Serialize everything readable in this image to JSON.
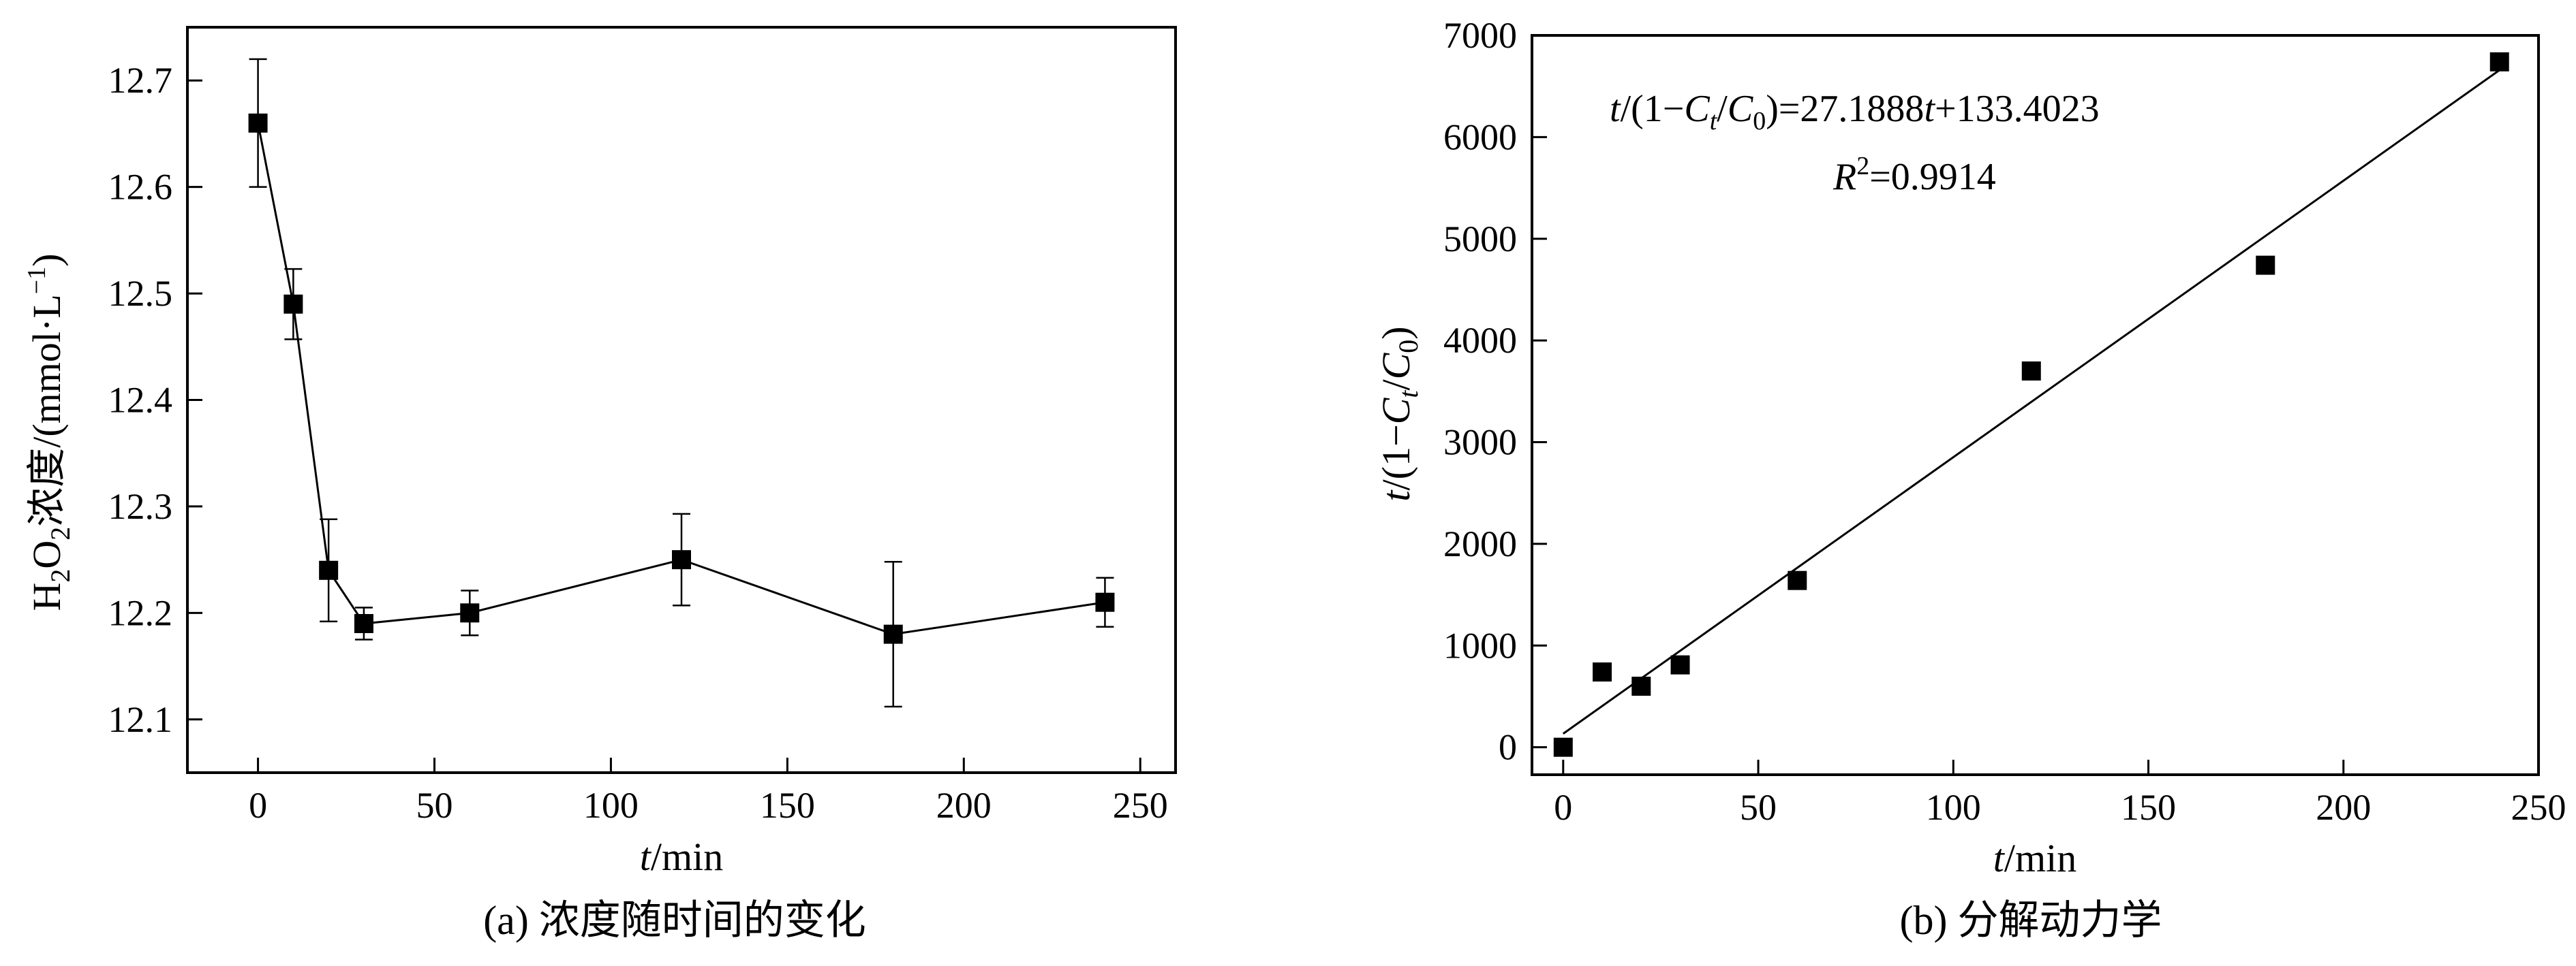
{
  "colors": {
    "ink": "#000000",
    "background": "#ffffff"
  },
  "chart_data": [
    {
      "type": "line",
      "caption": "(a) 浓度随时间的变化",
      "xlabel": {
        "var": "t",
        "unit": "/min"
      },
      "ylabel": {
        "species": "H",
        "sub1": "2",
        "mid": "O",
        "sub2": "2",
        "word": "浓度/(mmol·L",
        "exp": "−1",
        "close": ")"
      },
      "xlim": [
        -20,
        260
      ],
      "ylim": [
        12.05,
        12.75
      ],
      "x_ticks": [
        0,
        50,
        100,
        150,
        200,
        250
      ],
      "y_ticks": [
        12.1,
        12.2,
        12.3,
        12.4,
        12.5,
        12.6,
        12.7
      ],
      "x_tick_labels": [
        "0",
        "50",
        "100",
        "150",
        "200",
        "250"
      ],
      "y_tick_labels": [
        "12.1",
        "12.2",
        "12.3",
        "12.4",
        "12.5",
        "12.6",
        "12.7"
      ],
      "grid": false,
      "series": [
        {
          "marker": "square",
          "x": [
            0,
            10,
            20,
            30,
            60,
            120,
            180,
            240
          ],
          "y": [
            12.66,
            12.49,
            12.24,
            12.19,
            12.2,
            12.25,
            12.18,
            12.21
          ],
          "error": [
            0.06,
            0.033,
            0.048,
            0.015,
            0.021,
            0.043,
            0.068,
            0.023
          ]
        }
      ]
    },
    {
      "type": "scatter",
      "caption": "(b) 分解动力学",
      "xlabel": {
        "var": "t",
        "unit": "/min"
      },
      "ylabel": {
        "t": "t",
        "a": "/(1−",
        "C": "C",
        "t_sub": "t",
        "b": "/",
        "C0": "C",
        "zero_sub": "0",
        "c": ")"
      },
      "xlim": [
        -8,
        250
      ],
      "ylim": [
        -270,
        7000
      ],
      "x_ticks": [
        0,
        50,
        100,
        150,
        200,
        250
      ],
      "y_ticks": [
        0,
        1000,
        2000,
        3000,
        4000,
        5000,
        6000,
        7000
      ],
      "x_tick_labels": [
        "0",
        "50",
        "100",
        "150",
        "200",
        "250"
      ],
      "y_tick_labels": [
        "0",
        "1000",
        "2000",
        "3000",
        "4000",
        "5000",
        "6000",
        "7000"
      ],
      "grid": false,
      "series": [
        {
          "marker": "square",
          "x": [
            0,
            10,
            20,
            30,
            60,
            120,
            180,
            240
          ],
          "y": [
            0,
            740,
            600,
            810,
            1640,
            3700,
            4740,
            6740
          ]
        }
      ],
      "fit": {
        "slope": 27.1888,
        "intercept": 133.4023,
        "x_range": [
          0,
          240
        ]
      },
      "equation": {
        "t1": "t",
        "p1": "/(1−",
        "C1": "C",
        "ts": "t",
        "p2": "/",
        "C2": "C",
        "zs": "0",
        "p3": ")=27.1888",
        "t2": "t",
        "p4": "+133.4023",
        "R": "R",
        "sup2": "2",
        "rval": "=0.9914"
      }
    }
  ]
}
